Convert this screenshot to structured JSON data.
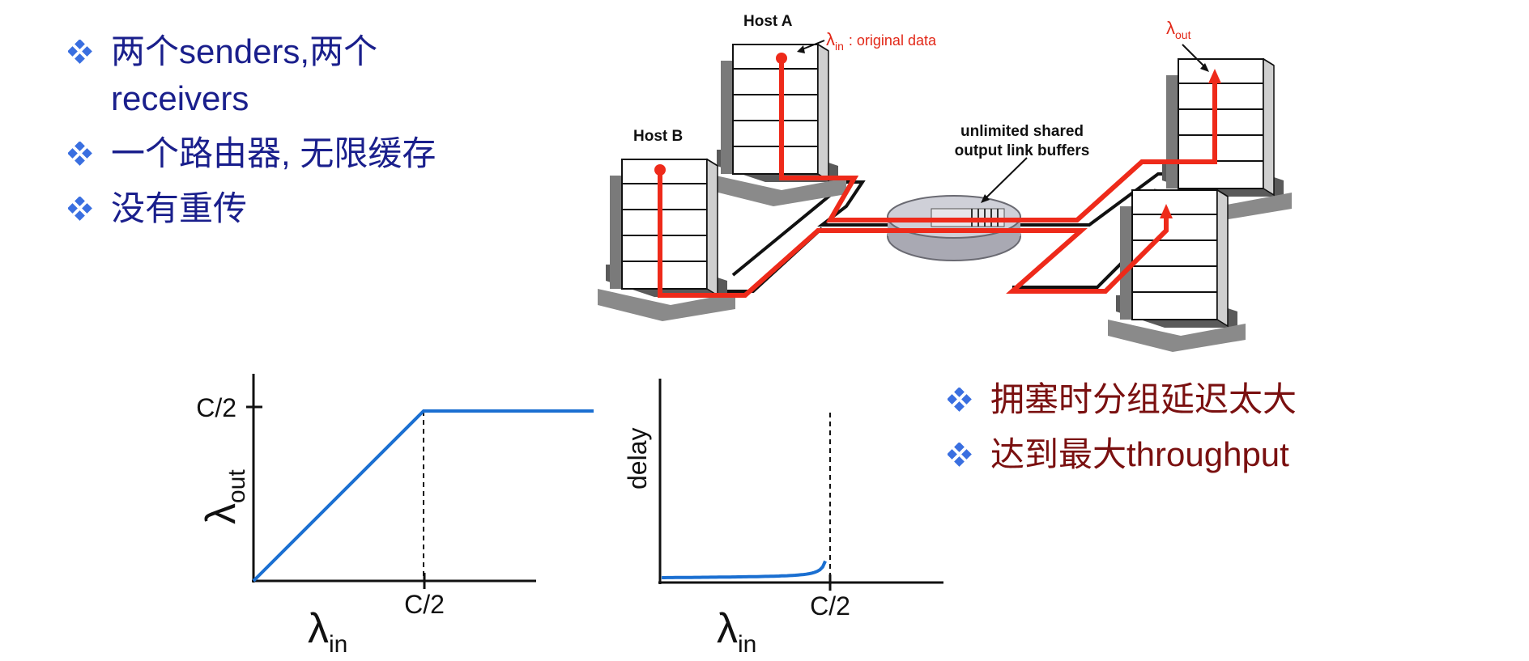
{
  "bullets_top": [
    {
      "text": "两个senders,两个receivers"
    },
    {
      "text": "一个路由器, 无限缓存"
    },
    {
      "text": "没有重传"
    }
  ],
  "bullets_bottom": [
    {
      "text": "拥塞时分组延迟太大"
    },
    {
      "text": "达到最大throughput"
    }
  ],
  "network": {
    "host_a": "Host A",
    "host_b": "Host B",
    "lambda_in_symbol": "λ",
    "lambda_in_sub": "in",
    "lambda_in_desc": ": original data",
    "lambda_out_symbol": "λ",
    "lambda_out_sub": "out",
    "buffer_line1": "unlimited shared",
    "buffer_line2": "output link buffers"
  },
  "chart_data": [
    {
      "type": "line",
      "ylabel_symbol": "λ",
      "ylabel_sub": "out",
      "xlabel_symbol": "λ",
      "xlabel_sub": "in",
      "x_tick": "C/2",
      "y_tick": "C/2",
      "points": [
        [
          0,
          0
        ],
        [
          0.5,
          0.5
        ],
        [
          1.0,
          0.5
        ]
      ],
      "marker_x": 0.5,
      "series_color": "#1a6fd1"
    },
    {
      "type": "line",
      "ylabel": "delay",
      "xlabel_symbol": "λ",
      "xlabel_sub": "in",
      "x_tick": "C/2",
      "asymptote_x": 0.5,
      "curve": "delay rises slowly, then grows without bound as λin approaches C/2",
      "series_color": "#1a6fd1"
    }
  ],
  "colors": {
    "bullet_top": "#1a1f8c",
    "bullet_bottom": "#7a1010",
    "flow": "#ee2a1a",
    "diamond": "#3a6fe0"
  }
}
